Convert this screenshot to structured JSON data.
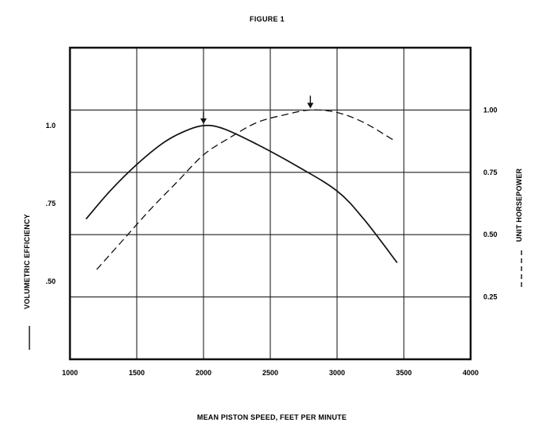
{
  "chart_data": {
    "type": "line",
    "title": "FIGURE 1",
    "xlabel": "MEAN PISTON SPEED, FEET PER MINUTE",
    "ylabel_left": "VOLUMETRIC EFFICIENCY",
    "ylabel_right": "UNIT HORSEPOWER",
    "xlim": [
      1000,
      4000
    ],
    "ylim_left": [
      0.25,
      1.25
    ],
    "ylim_right": [
      0.0,
      1.25
    ],
    "x_ticks": [
      1000,
      1500,
      2000,
      2500,
      3000,
      3500,
      4000
    ],
    "x_tick_labels": [
      "1000",
      "1500",
      "2000",
      "2500",
      "3000",
      "3500",
      "4000"
    ],
    "y_left_ticks": [
      0.5,
      0.75,
      1.0
    ],
    "y_left_tick_labels": [
      ".50",
      ".75",
      "1.0"
    ],
    "y_right_ticks": [
      0.25,
      0.5,
      0.75,
      1.0
    ],
    "y_right_tick_labels": [
      "0.25",
      "0.50",
      "0.75",
      "1.00"
    ],
    "grid": true,
    "series": [
      {
        "name": "VOLUMETRIC EFFICIENCY",
        "axis": "left",
        "line_style": "solid",
        "x": [
          1120,
          1300,
          1500,
          1700,
          1850,
          2000,
          2150,
          2400,
          2700,
          3000,
          3200,
          3450
        ],
        "y": [
          0.7,
          0.79,
          0.875,
          0.945,
          0.98,
          1.0,
          0.99,
          0.94,
          0.87,
          0.79,
          0.7,
          0.56
        ],
        "peak": {
          "x": 2000,
          "y": 1.0
        }
      },
      {
        "name": "UNIT HORSEPOWER",
        "axis": "right",
        "line_style": "dashed",
        "x": [
          1200,
          1400,
          1600,
          1800,
          2000,
          2200,
          2400,
          2600,
          2800,
          3000,
          3200,
          3420
        ],
        "y": [
          0.36,
          0.48,
          0.6,
          0.71,
          0.82,
          0.89,
          0.95,
          0.98,
          1.0,
          0.99,
          0.95,
          0.88
        ],
        "peak": {
          "x": 2800,
          "y": 1.0
        }
      }
    ]
  }
}
